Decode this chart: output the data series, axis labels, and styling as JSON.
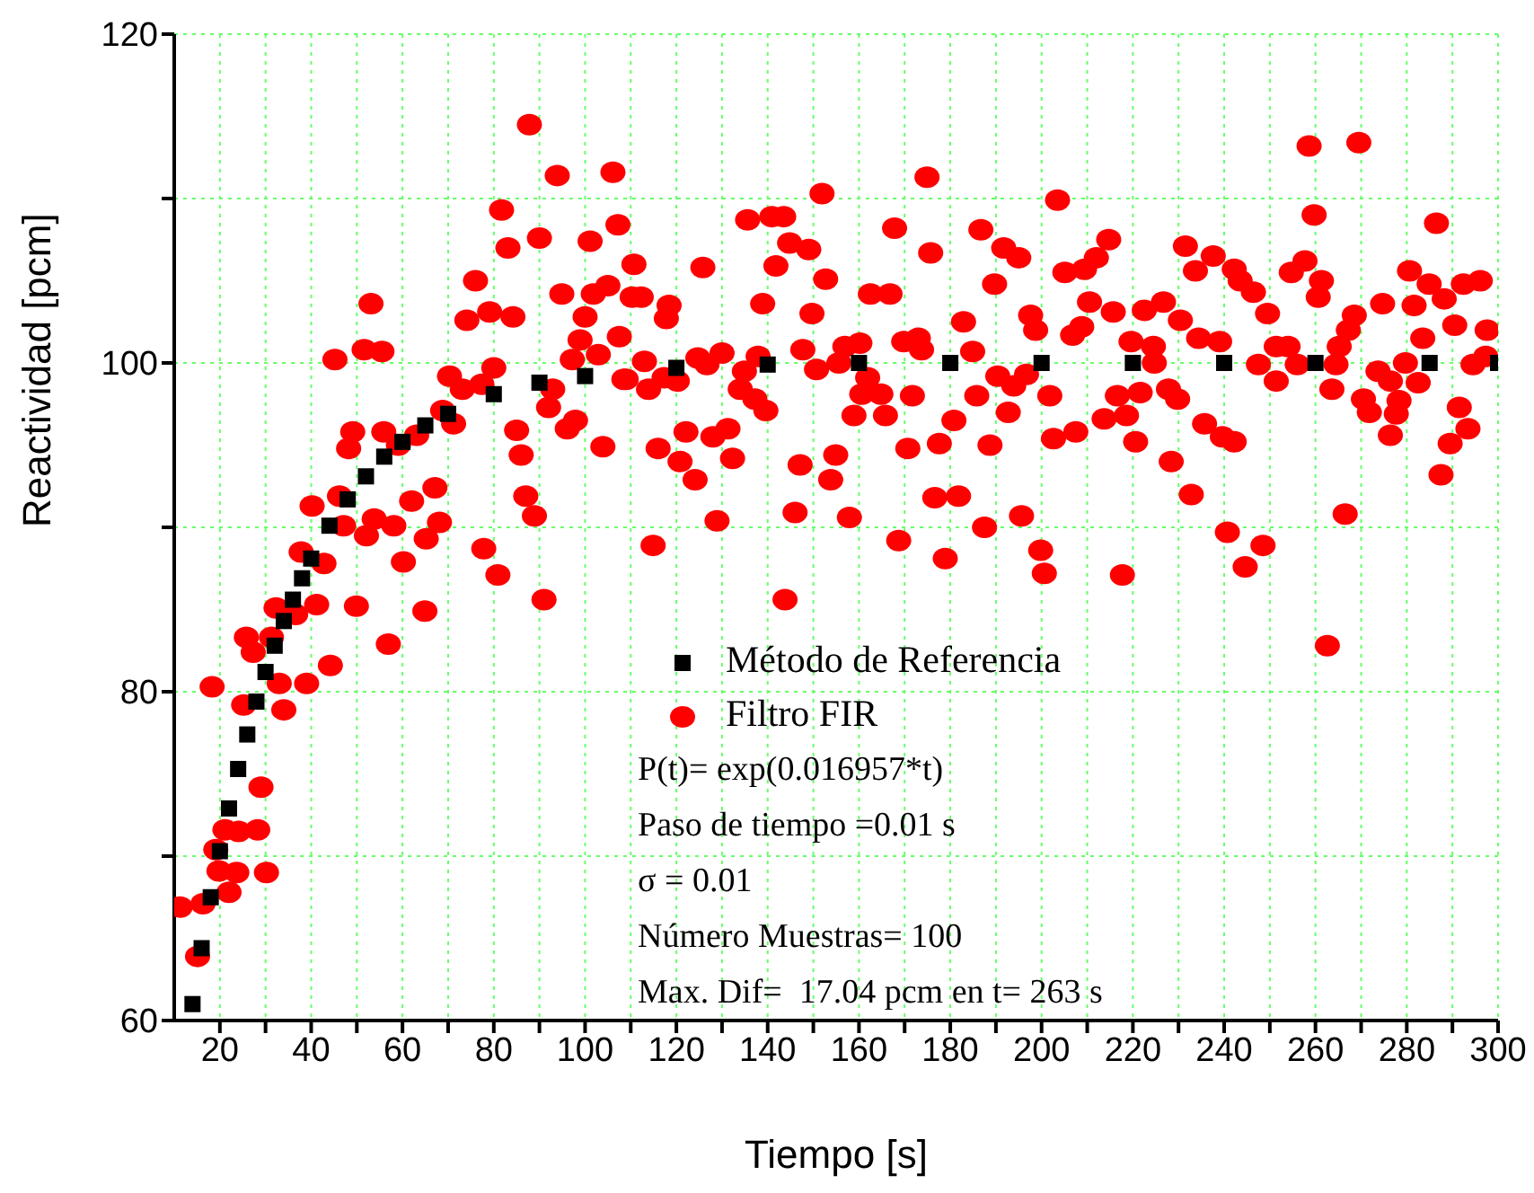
{
  "chart_data": {
    "type": "scatter",
    "xlabel": "Tiempo [s]",
    "ylabel": "Reactividad [pcm]",
    "xlim": [
      10,
      300
    ],
    "ylim": [
      60,
      120
    ],
    "xticks": [
      20,
      {
        "value": 30,
        "label": null
      },
      40,
      {
        "value": 50,
        "label": null
      },
      60,
      {
        "value": 70,
        "label": null
      },
      80,
      {
        "value": 90,
        "label": null
      },
      100,
      {
        "value": 110,
        "label": null
      },
      120,
      {
        "value": 130,
        "label": null
      },
      140,
      {
        "value": 150,
        "label": null
      },
      160,
      {
        "value": 170,
        "label": null
      },
      180,
      {
        "value": 190,
        "label": null
      },
      200,
      {
        "value": 210,
        "label": null
      },
      220,
      {
        "value": 230,
        "label": null
      },
      240,
      {
        "value": 250,
        "label": null
      },
      260,
      {
        "value": 270,
        "label": null
      },
      280,
      {
        "value": 290,
        "label": null
      },
      300
    ],
    "yticks": [
      60,
      {
        "value": 70,
        "label": null
      },
      80,
      {
        "value": 90,
        "label": null
      },
      100,
      {
        "value": 110,
        "label": null
      },
      120
    ],
    "grid": true,
    "legend": "bottom",
    "annotations": [
      "P(t)= exp(0.016957*t)",
      "Paso de tiempo =0.01 s",
      "σ = 0.01",
      "Número Muestras= 100",
      "Max. Dif=  17.04 pcm en t= 263 s"
    ],
    "series": [
      {
        "name": "Método de Referencia",
        "color": "#000000",
        "marker": "square",
        "x": [
          14,
          16,
          18,
          20,
          22,
          24,
          26,
          28,
          30,
          32,
          34,
          36,
          38,
          40,
          44,
          48,
          52,
          56,
          60,
          65,
          70,
          80,
          90,
          100,
          120,
          140,
          160,
          180,
          200,
          220,
          240,
          260,
          285,
          300
        ],
        "values": [
          61.0,
          64.4,
          67.5,
          70.3,
          72.9,
          75.3,
          77.4,
          79.4,
          81.2,
          82.8,
          84.3,
          85.6,
          86.9,
          88.1,
          90.1,
          91.7,
          93.1,
          94.3,
          95.2,
          96.2,
          96.9,
          98.1,
          98.8,
          99.2,
          99.7,
          99.9,
          100,
          100,
          100,
          100,
          100,
          100,
          100,
          100
        ]
      },
      {
        "name": "Filtro FIR",
        "color": "#ff0000",
        "marker": "circle",
        "x": [
          11.3,
          15.1,
          16.3,
          18.3,
          19.1,
          19.8,
          22.0,
          23.7,
          21.1,
          24.1,
          28.3,
          29.0,
          30.2,
          25.2,
          25.8,
          27.3,
          31.3,
          33.0,
          34.0,
          32.3,
          36.6,
          41.2,
          39.0,
          44.2,
          49.9,
          56.9,
          37.8,
          42.8,
          40.2,
          46.2,
          47.1,
          52.1,
          53.8,
          58.1,
          60.2,
          62.0,
          65.2,
          67.1,
          68.1,
          64.9,
          77.8,
          80.9,
          91.0,
          48.2,
          49.1,
          55.9,
          59.1,
          63.1,
          45.2,
          51.6,
          55.5,
          53.1,
          70.3,
          73.1,
          68.8,
          71.2,
          77.4,
          80.0,
          74.1,
          76.0,
          79.1,
          84.2,
          81.7,
          83.1,
          87.8,
          90.0,
          93.9,
          85.0,
          86.0,
          87.0,
          88.9,
          92.0,
          92.9,
          96.1,
          97.9,
          103.9,
          94.9,
          97.2,
          98.9,
          100.0,
          101.1,
          102.9,
          101.8,
          105.0,
          106.1,
          107.2,
          107.5,
          108.5,
          110.7,
          110.3,
          112.3,
          118.4,
          117.8,
          125.8,
          113.0,
          109.0,
          113.9,
          117.3,
          120.2,
          124.7,
          126.7,
          130.0,
          134.9,
          134.0,
          137.2,
          139.6,
          137.9,
          116.0,
          122.1,
          120.8,
          124.1,
          128.0,
          131.3,
          132.3,
          128.9,
          114.9,
          143.8,
          146.0,
          147.1,
          153.8,
          154.9,
          157.9,
          158.9,
          135.6,
          140.9,
          143.5,
          144.8,
          149.0,
          141.8,
          151.9,
          152.7,
          138.9,
          149.7,
          147.7,
          150.7,
          155.6,
          156.9,
          160.2,
          161.9,
          160.6,
          164.8,
          165.8,
          162.5,
          166.8,
          167.8,
          174.9,
          175.7,
          169.8,
          173.0,
          173.7,
          171.7,
          170.7,
          168.7,
          177.6,
          180.8,
          176.6,
          181.8,
          178.9,
          182.9,
          184.9,
          185.8,
          186.7,
          189.7,
          191.7,
          195.0,
          190.4,
          193.9,
          196.7,
          192.7,
          188.7,
          187.5,
          195.6,
          199.8,
          200.6,
          201.8,
          202.6,
          197.6,
          198.7,
          203.5,
          205.1,
          206.8,
          207.5,
          209.4,
          212.0,
          214.7,
          210.5,
          215.7,
          208.8,
          219.6,
          222.5,
          226.7,
          224.5,
          224.7,
          230.4,
          231.5,
          233.7,
          237.6,
          234.4,
          239.0,
          242.2,
          243.5,
          246.4,
          249.5,
          216.6,
          221.6,
          218.6,
          213.7,
          220.6,
          227.8,
          229.8,
          228.4,
          235.7,
          239.6,
          242.2,
          232.8,
          240.7,
          248.5,
          244.6,
          217.7,
          247.5,
          251.4,
          254.0,
          251.4,
          256.0,
          254.7,
          257.7,
          261.3,
          260.6,
          258.6,
          269.5,
          259.7,
          263.6,
          264.5,
          265.2,
          267.2,
          268.5,
          266.5,
          270.5,
          271.8,
          273.7,
          276.4,
          278.3,
          277.7,
          276.4,
          279.7,
          282.5,
          274.7,
          280.6,
          281.6,
          284.9,
          283.5,
          286.5,
          288.2,
          290.5,
          291.5,
          293.4,
          289.5,
          287.5,
          292.4,
          296.1,
          297.6,
          297.3,
          294.5,
          262.6
        ],
        "values": [
          66.9,
          63.9,
          67.1,
          80.3,
          70.4,
          69.1,
          67.8,
          69.0,
          71.6,
          71.5,
          71.6,
          74.2,
          69.0,
          79.2,
          83.3,
          82.4,
          83.3,
          80.5,
          78.9,
          85.1,
          84.7,
          85.3,
          80.5,
          81.6,
          85.2,
          82.9,
          88.5,
          87.8,
          91.3,
          91.9,
          90.1,
          89.5,
          90.5,
          90.1,
          87.9,
          91.6,
          89.3,
          92.4,
          90.3,
          84.9,
          88.7,
          87.1,
          85.6,
          94.8,
          95.8,
          95.8,
          95.0,
          95.6,
          100.2,
          100.8,
          100.7,
          103.6,
          99.2,
          98.4,
          97.1,
          96.3,
          98.7,
          99.7,
          102.6,
          105.0,
          103.1,
          102.8,
          109.3,
          107.0,
          114.5,
          107.6,
          111.4,
          95.9,
          94.4,
          91.9,
          90.7,
          97.3,
          98.4,
          96.0,
          96.5,
          94.9,
          104.2,
          100.2,
          101.4,
          102.8,
          107.4,
          100.5,
          104.2,
          104.7,
          111.6,
          108.4,
          101.6,
          99.0,
          106.0,
          104.0,
          104.0,
          103.5,
          102.7,
          105.8,
          100.1,
          99.0,
          98.4,
          99.1,
          98.9,
          100.3,
          99.9,
          100.6,
          99.5,
          98.4,
          97.8,
          97.1,
          100.4,
          94.8,
          95.8,
          94.0,
          92.9,
          95.5,
          96.0,
          94.2,
          90.4,
          88.9,
          85.6,
          90.9,
          93.8,
          92.9,
          94.4,
          90.6,
          96.8,
          108.7,
          108.9,
          108.9,
          107.3,
          106.9,
          105.9,
          110.3,
          105.1,
          103.6,
          103.0,
          100.8,
          99.6,
          100.0,
          101.0,
          101.2,
          99.1,
          98.1,
          98.1,
          96.8,
          104.2,
          104.2,
          108.2,
          111.3,
          106.7,
          101.3,
          101.5,
          100.8,
          98.0,
          94.8,
          89.2,
          95.1,
          96.5,
          91.8,
          91.9,
          88.1,
          102.5,
          100.7,
          98.0,
          108.1,
          104.8,
          107.0,
          106.4,
          99.2,
          98.6,
          99.3,
          97.0,
          95.0,
          90.0,
          90.7,
          88.6,
          87.2,
          98.0,
          95.4,
          102.9,
          102.0,
          109.9,
          105.5,
          101.7,
          95.8,
          105.7,
          106.4,
          107.5,
          103.7,
          103.1,
          102.2,
          101.3,
          103.2,
          103.7,
          101.0,
          100.0,
          102.6,
          107.1,
          105.6,
          106.5,
          101.5,
          101.3,
          105.7,
          105.0,
          104.3,
          103.0,
          98.0,
          98.2,
          96.8,
          96.6,
          95.2,
          98.4,
          97.8,
          94.0,
          96.3,
          95.5,
          95.2,
          92.0,
          89.7,
          88.9,
          87.6,
          87.1,
          99.9,
          101.0,
          101.0,
          98.9,
          99.9,
          105.5,
          106.2,
          105.0,
          104.0,
          113.2,
          113.4,
          109.0,
          98.4,
          99.9,
          101.0,
          102.0,
          102.9,
          90.8,
          97.8,
          97.0,
          99.5,
          98.9,
          97.7,
          96.9,
          95.6,
          100.0,
          98.8,
          103.6,
          105.6,
          103.5,
          104.8,
          101.5,
          108.5,
          103.9,
          102.3,
          97.3,
          96.0,
          95.1,
          93.2,
          104.8,
          105.0,
          102.0,
          100.4,
          99.9,
          82.8
        ]
      }
    ]
  }
}
